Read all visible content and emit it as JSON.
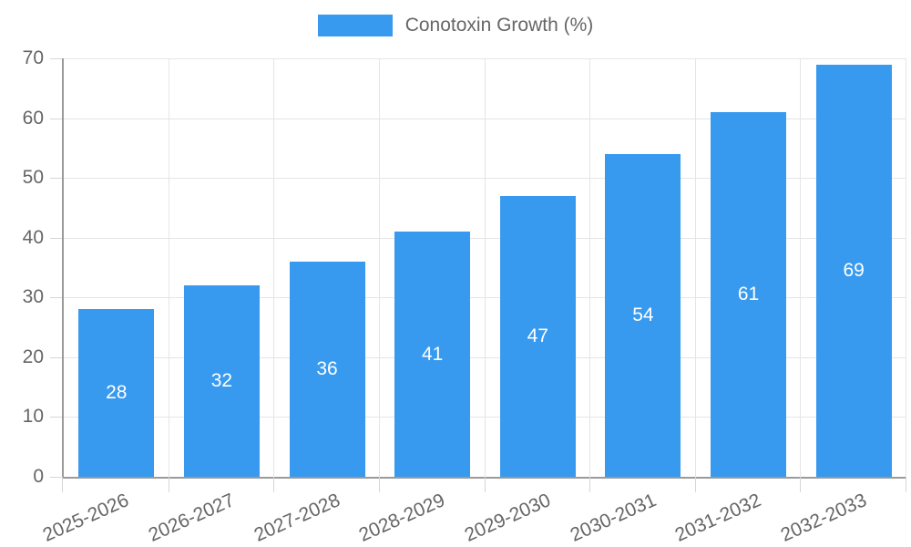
{
  "legend": {
    "label": "Conotoxin Growth (%)"
  },
  "chart_data": {
    "type": "bar",
    "categories": [
      "2025-2026",
      "2026-2027",
      "2027-2028",
      "2028-2029",
      "2029-2030",
      "2030-2031",
      "2031-2032",
      "2032-2033"
    ],
    "values": [
      28,
      32,
      36,
      41,
      47,
      54,
      61,
      69
    ],
    "series_name": "Conotoxin Growth (%)",
    "title": "",
    "xlabel": "",
    "ylabel": "",
    "ylim": [
      0,
      70
    ],
    "yticks": [
      0,
      10,
      20,
      30,
      40,
      50,
      60,
      70
    ],
    "grid": true,
    "legend_position": "top",
    "value_labels": "inside-center",
    "colors": {
      "bar": "#389aef",
      "value_label": "#ffffff",
      "axis": "#9a9a9a",
      "gridline": "#e5e5e5",
      "tick_mark": "#d6d6d6",
      "text": "#666666",
      "background": "#ffffff"
    }
  }
}
